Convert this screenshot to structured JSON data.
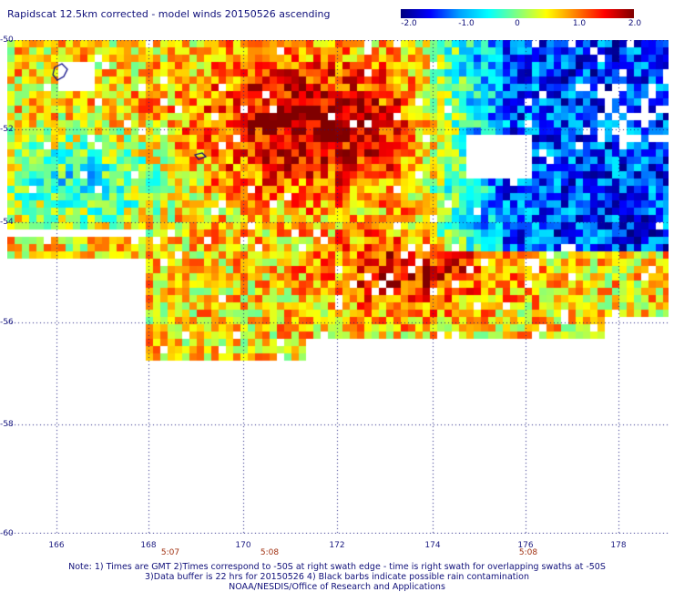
{
  "title": "Rapidscat 12.5km corrected - model winds 20150526 ascending",
  "colorbar": {
    "labels": [
      "-2.0",
      "-1.0",
      "0",
      "1.0",
      "2.0"
    ],
    "min": -2.0,
    "max": 2.0,
    "colors": [
      "#000080",
      "#0000ff",
      "#00a0ff",
      "#00ffff",
      "#80ff80",
      "#ffff00",
      "#ff8000",
      "#ff0000",
      "#800000"
    ]
  },
  "map": {
    "lat_labels": [
      "-50",
      "-52",
      "-54",
      "-56",
      "-58",
      "-60"
    ],
    "lon_labels": [
      "166",
      "168",
      "170",
      "172",
      "174",
      "176",
      "178"
    ],
    "time_labels": [
      "5:07",
      "5:08",
      "5:08"
    ],
    "grid_style": "dotted",
    "land_outline_color": "#000080"
  },
  "notes": {
    "line1": "Note: 1) Times are GMT 2)Times correspond to -50S at right swath edge - time is right swath for overlapping swaths at -50S",
    "line2": "3)Data buffer is 22 hrs for 20150526 4) Black barbs indicate possible rain contamination",
    "line3": "NOAA/NESDIS/Office of Research and Applications"
  }
}
